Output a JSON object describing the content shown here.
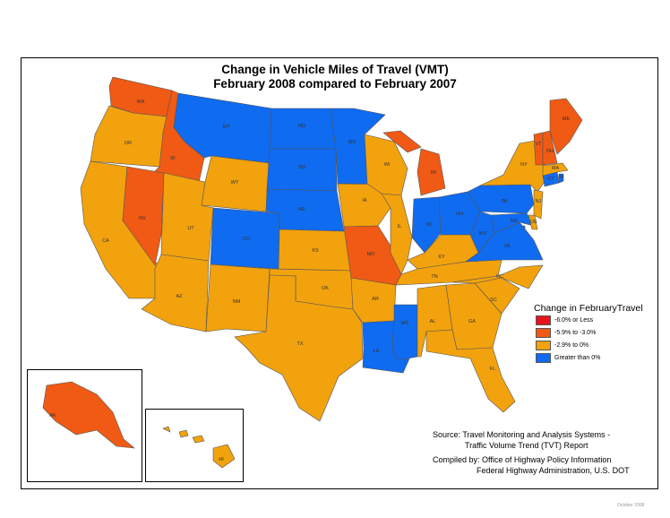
{
  "title_line1": "Change in Vehicle Miles of Travel (VMT)",
  "title_line2": "February 2008 compared to February 2007",
  "legend": {
    "title": "Change in FebruaryTravel",
    "items": [
      {
        "label": "-6.0% or Less",
        "color": "#e8141b"
      },
      {
        "label": "-5.9% to -3.0%",
        "color": "#f05a14"
      },
      {
        "label": "-2.9% to 0%",
        "color": "#f2a20d"
      },
      {
        "label": "Greater than 0%",
        "color": "#0f6bf0"
      }
    ]
  },
  "colors": {
    "border": "#555555"
  },
  "source": {
    "line1": "Source: Travel Monitoring and Analysis Systems -",
    "line2": "Traffic Volume Trend (TVT) Report"
  },
  "compiled": {
    "line1": "Compiled by: Office of Highway Policy Information",
    "line2": "Federal Highway Administration, U.S. DOT"
  },
  "footer_date": "October 2008",
  "states": [
    {
      "abbr": "WA",
      "category": "-5.9% to -3.0%"
    },
    {
      "abbr": "OR",
      "category": "-2.9% to 0%"
    },
    {
      "abbr": "CA",
      "category": "-2.9% to 0%"
    },
    {
      "abbr": "ID",
      "category": "-5.9% to -3.0%"
    },
    {
      "abbr": "NV",
      "category": "-5.9% to -3.0%"
    },
    {
      "abbr": "MT",
      "category": "Greater than 0%"
    },
    {
      "abbr": "WY",
      "category": "-2.9% to 0%"
    },
    {
      "abbr": "UT",
      "category": "-2.9% to 0%"
    },
    {
      "abbr": "AZ",
      "category": "-2.9% to 0%"
    },
    {
      "abbr": "CO",
      "category": "Greater than 0%"
    },
    {
      "abbr": "NM",
      "category": "-2.9% to 0%"
    },
    {
      "abbr": "ND",
      "category": "Greater than 0%"
    },
    {
      "abbr": "SD",
      "category": "Greater than 0%"
    },
    {
      "abbr": "NE",
      "category": "Greater than 0%"
    },
    {
      "abbr": "KS",
      "category": "-2.9% to 0%"
    },
    {
      "abbr": "OK",
      "category": "-2.9% to 0%"
    },
    {
      "abbr": "TX",
      "category": "-2.9% to 0%"
    },
    {
      "abbr": "MN",
      "category": "Greater than 0%"
    },
    {
      "abbr": "IA",
      "category": "-2.9% to 0%"
    },
    {
      "abbr": "MO",
      "category": "-5.9% to -3.0%"
    },
    {
      "abbr": "AR",
      "category": "-2.9% to 0%"
    },
    {
      "abbr": "LA",
      "category": "Greater than 0%"
    },
    {
      "abbr": "WI",
      "category": "-2.9% to 0%"
    },
    {
      "abbr": "IL",
      "category": "-2.9% to 0%"
    },
    {
      "abbr": "MS",
      "category": "Greater than 0%"
    },
    {
      "abbr": "MI",
      "category": "-5.9% to -3.0%"
    },
    {
      "abbr": "IN",
      "category": "Greater than 0%"
    },
    {
      "abbr": "KY",
      "category": "-2.9% to 0%"
    },
    {
      "abbr": "TN",
      "category": "-2.9% to 0%"
    },
    {
      "abbr": "AL",
      "category": "-2.9% to 0%"
    },
    {
      "abbr": "OH",
      "category": "Greater than 0%"
    },
    {
      "abbr": "GA",
      "category": "-2.9% to 0%"
    },
    {
      "abbr": "FL",
      "category": "-2.9% to 0%"
    },
    {
      "abbr": "SC",
      "category": "-2.9% to 0%"
    },
    {
      "abbr": "NC",
      "category": "-2.9% to 0%"
    },
    {
      "abbr": "VA",
      "category": "Greater than 0%"
    },
    {
      "abbr": "WV",
      "category": "Greater than 0%"
    },
    {
      "abbr": "PA",
      "category": "Greater than 0%"
    },
    {
      "abbr": "NY",
      "category": "-2.9% to 0%"
    },
    {
      "abbr": "MD",
      "category": "Greater than 0%"
    },
    {
      "abbr": "DE",
      "category": "-2.9% to 0%"
    },
    {
      "abbr": "NJ",
      "category": "-2.9% to 0%"
    },
    {
      "abbr": "CT",
      "category": "Greater than 0%"
    },
    {
      "abbr": "RI",
      "category": "Greater than 0%"
    },
    {
      "abbr": "MA",
      "category": "-2.9% to 0%"
    },
    {
      "abbr": "VT",
      "category": "-5.9% to -3.0%"
    },
    {
      "abbr": "NH",
      "category": "-5.9% to -3.0%"
    },
    {
      "abbr": "ME",
      "category": "-5.9% to -3.0%"
    },
    {
      "abbr": "AK",
      "category": "-5.9% to -3.0%"
    },
    {
      "abbr": "HI",
      "category": "-2.9% to 0%"
    },
    {
      "abbr": "DC",
      "category": "Greater than 0%"
    }
  ]
}
